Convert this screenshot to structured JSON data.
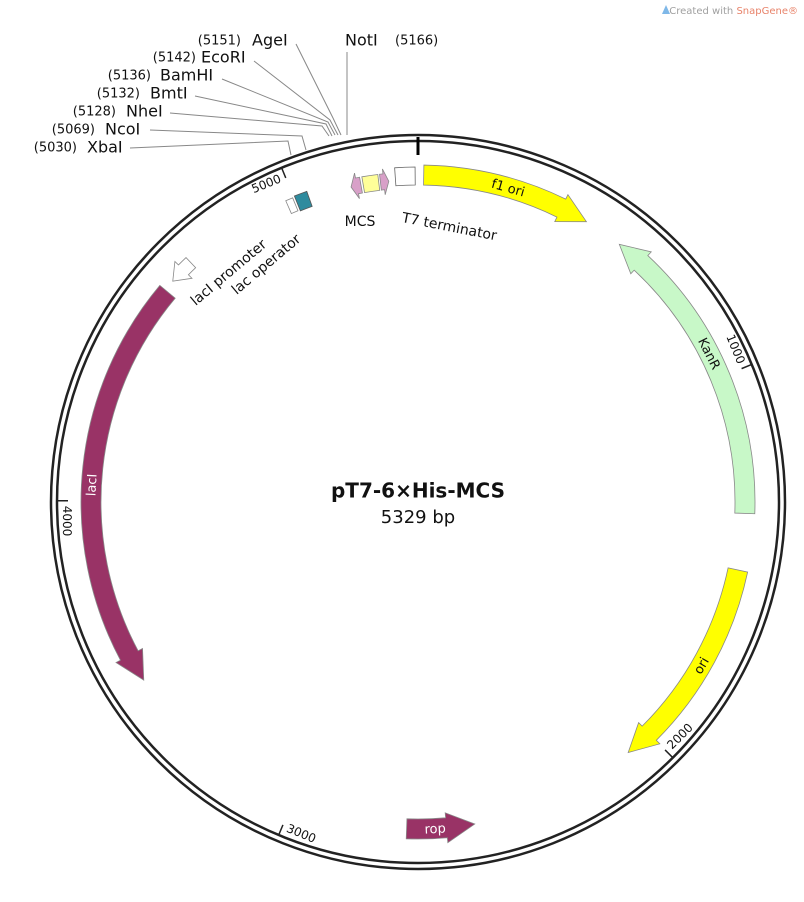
{
  "watermark": {
    "prefix": "Created with ",
    "brand": "SnapGene®"
  },
  "title": "pT7-6×His-MCS",
  "subtitle": "5329 bp",
  "sites": [
    {
      "position": "(5151)",
      "name": "AgeI"
    },
    {
      "position": "(5166)",
      "name": "NotI"
    },
    {
      "position": "(5142)",
      "name": "EcoRI"
    },
    {
      "position": "(5136)",
      "name": "BamHI"
    },
    {
      "position": "(5132)",
      "name": "BmtI"
    },
    {
      "position": "(5128)",
      "name": "NheI"
    },
    {
      "position": "(5069)",
      "name": "NcoI"
    },
    {
      "position": "(5030)",
      "name": "XbaI"
    }
  ],
  "ticks": [
    "1000",
    "2000",
    "3000",
    "4000",
    "5000"
  ],
  "features": [
    {
      "label": "f1 ori"
    },
    {
      "label": "KanR"
    },
    {
      "label": "ori"
    },
    {
      "label": "rop"
    },
    {
      "label": "lacI"
    }
  ],
  "annotations": [
    "MCS",
    "T7 terminator",
    "lacI promoter",
    "lac operator"
  ]
}
